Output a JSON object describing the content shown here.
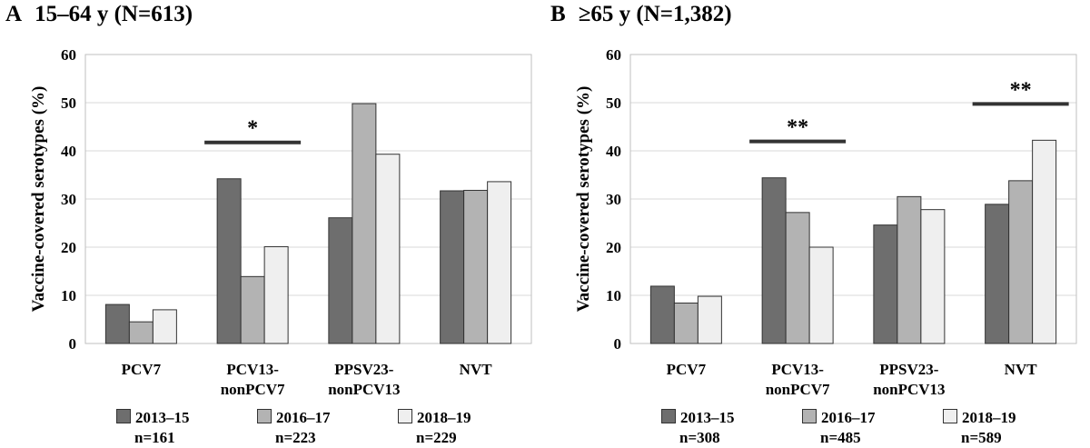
{
  "chart_data": [
    {
      "type": "bar",
      "panel_letter": "A",
      "title": "15–64 y (N=613)",
      "ylabel": "Vaccine-covered serotypes (%)",
      "xlabel": "",
      "ylim": [
        0,
        60
      ],
      "yticks": [
        0,
        10,
        20,
        30,
        40,
        50,
        60
      ],
      "grid": true,
      "legend": "bottom",
      "categories": [
        "PCV7",
        "PCV13-\nnonPCV7",
        "PPSV23-\nnonPCV13",
        "NVT"
      ],
      "series": [
        {
          "name": "2013–15",
          "n_label": "n=161",
          "color": "#6e6e6e",
          "values": [
            8.1,
            34.2,
            26.1,
            31.7
          ]
        },
        {
          "name": "2016–17",
          "n_label": "n=223",
          "color": "#b3b3b3",
          "values": [
            4.5,
            13.9,
            49.8,
            31.8
          ]
        },
        {
          "name": "2018–19",
          "n_label": "n=229",
          "color": "#efefef",
          "values": [
            7.0,
            20.1,
            39.3,
            33.6
          ]
        }
      ],
      "annotations": [
        {
          "category_from": 1,
          "category_to": 1,
          "text": "*"
        }
      ]
    },
    {
      "type": "bar",
      "panel_letter": "B",
      "title": "≥65 y (N=1,382)",
      "ylabel": "Vaccine-covered serotypes (%)",
      "xlabel": "",
      "ylim": [
        0,
        60
      ],
      "yticks": [
        0,
        10,
        20,
        30,
        40,
        50,
        60
      ],
      "grid": true,
      "legend": "bottom",
      "categories": [
        "PCV7",
        "PCV13-\nnonPCV7",
        "PPSV23-\nnonPCV13",
        "NVT"
      ],
      "series": [
        {
          "name": "2013–15",
          "n_label": "n=308",
          "color": "#6e6e6e",
          "values": [
            11.9,
            34.4,
            24.6,
            28.9
          ]
        },
        {
          "name": "2016–17",
          "n_label": "n=485",
          "color": "#b3b3b3",
          "values": [
            8.4,
            27.2,
            30.5,
            33.8
          ]
        },
        {
          "name": "2018–19",
          "n_label": "n=589",
          "color": "#efefef",
          "values": [
            9.8,
            20.0,
            27.8,
            42.2
          ]
        }
      ],
      "annotations": [
        {
          "category_from": 1,
          "category_to": 1,
          "text": "**"
        },
        {
          "category_from": 3,
          "category_to": 3,
          "text": "**"
        }
      ]
    }
  ]
}
